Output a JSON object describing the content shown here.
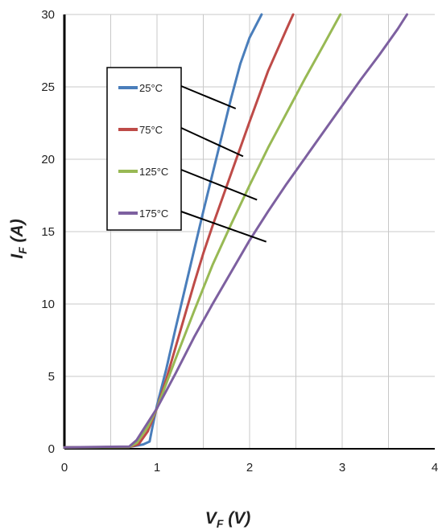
{
  "chart_data": {
    "type": "line",
    "title": "",
    "xlabel": {
      "main": "V",
      "sub": "F",
      "tail": " (V)"
    },
    "ylabel": {
      "main": "I",
      "sub": "F",
      "tail": " (A)"
    },
    "xlim": [
      0,
      4
    ],
    "ylim": [
      0,
      30
    ],
    "x_ticks": [
      "0",
      "1",
      "2",
      "3",
      "4"
    ],
    "y_ticks": [
      "0",
      "5",
      "10",
      "15",
      "20",
      "25",
      "30"
    ],
    "grid": true,
    "legend_position": "top-left",
    "series": [
      {
        "name": "25°C",
        "color": "#4a7ebb",
        "points": [
          [
            0,
            0.1
          ],
          [
            0.7,
            0.12
          ],
          [
            0.85,
            0.3
          ],
          [
            0.92,
            0.5
          ],
          [
            0.95,
            1.5
          ],
          [
            1.0,
            3.0
          ],
          [
            1.1,
            5.5
          ],
          [
            1.2,
            8.3
          ],
          [
            1.3,
            11.0
          ],
          [
            1.4,
            13.7
          ],
          [
            1.5,
            16.4
          ],
          [
            1.6,
            19.0
          ],
          [
            1.7,
            21.6
          ],
          [
            1.8,
            24.2
          ],
          [
            1.9,
            26.6
          ],
          [
            2.0,
            28.4
          ],
          [
            2.13,
            30
          ]
        ]
      },
      {
        "name": "75°C",
        "color": "#be4b48",
        "points": [
          [
            0,
            0.1
          ],
          [
            0.7,
            0.12
          ],
          [
            0.8,
            0.3
          ],
          [
            0.9,
            1.2
          ],
          [
            1.0,
            2.8
          ],
          [
            1.1,
            4.8
          ],
          [
            1.2,
            7.0
          ],
          [
            1.3,
            9.2
          ],
          [
            1.4,
            11.4
          ],
          [
            1.5,
            13.5
          ],
          [
            1.6,
            15.4
          ],
          [
            1.7,
            17.2
          ],
          [
            1.8,
            19.0
          ],
          [
            1.9,
            20.8
          ],
          [
            2.0,
            22.6
          ],
          [
            2.2,
            26.1
          ],
          [
            2.4,
            29.0
          ],
          [
            2.47,
            30
          ]
        ]
      },
      {
        "name": "125°C",
        "color": "#98b954",
        "points": [
          [
            0,
            0.1
          ],
          [
            0.7,
            0.12
          ],
          [
            0.78,
            0.4
          ],
          [
            0.9,
            1.5
          ],
          [
            1.0,
            2.8
          ],
          [
            1.2,
            6.2
          ],
          [
            1.4,
            9.5
          ],
          [
            1.6,
            12.7
          ],
          [
            1.8,
            15.5
          ],
          [
            2.0,
            18.2
          ],
          [
            2.2,
            20.8
          ],
          [
            2.4,
            23.2
          ],
          [
            2.6,
            25.6
          ],
          [
            2.8,
            27.9
          ],
          [
            2.98,
            30
          ]
        ]
      },
      {
        "name": "175°C",
        "color": "#7d60a0",
        "points": [
          [
            0,
            0.1
          ],
          [
            0.7,
            0.15
          ],
          [
            0.78,
            0.6
          ],
          [
            0.9,
            1.8
          ],
          [
            1.0,
            2.8
          ],
          [
            1.2,
            5.2
          ],
          [
            1.4,
            7.7
          ],
          [
            1.6,
            10.0
          ],
          [
            1.8,
            12.2
          ],
          [
            2.0,
            14.4
          ],
          [
            2.2,
            16.4
          ],
          [
            2.4,
            18.3
          ],
          [
            2.6,
            20.1
          ],
          [
            2.8,
            21.9
          ],
          [
            3.0,
            23.7
          ],
          [
            3.2,
            25.5
          ],
          [
            3.4,
            27.2
          ],
          [
            3.6,
            29.0
          ],
          [
            3.7,
            30
          ]
        ]
      }
    ],
    "annotations": [
      {
        "series": "25°C",
        "x": 1.85,
        "y": 23.5
      },
      {
        "series": "75°C",
        "x": 1.93,
        "y": 20.2
      },
      {
        "series": "125°C",
        "x": 2.08,
        "y": 17.2
      },
      {
        "series": "175°C",
        "x": 2.18,
        "y": 14.3
      }
    ]
  }
}
